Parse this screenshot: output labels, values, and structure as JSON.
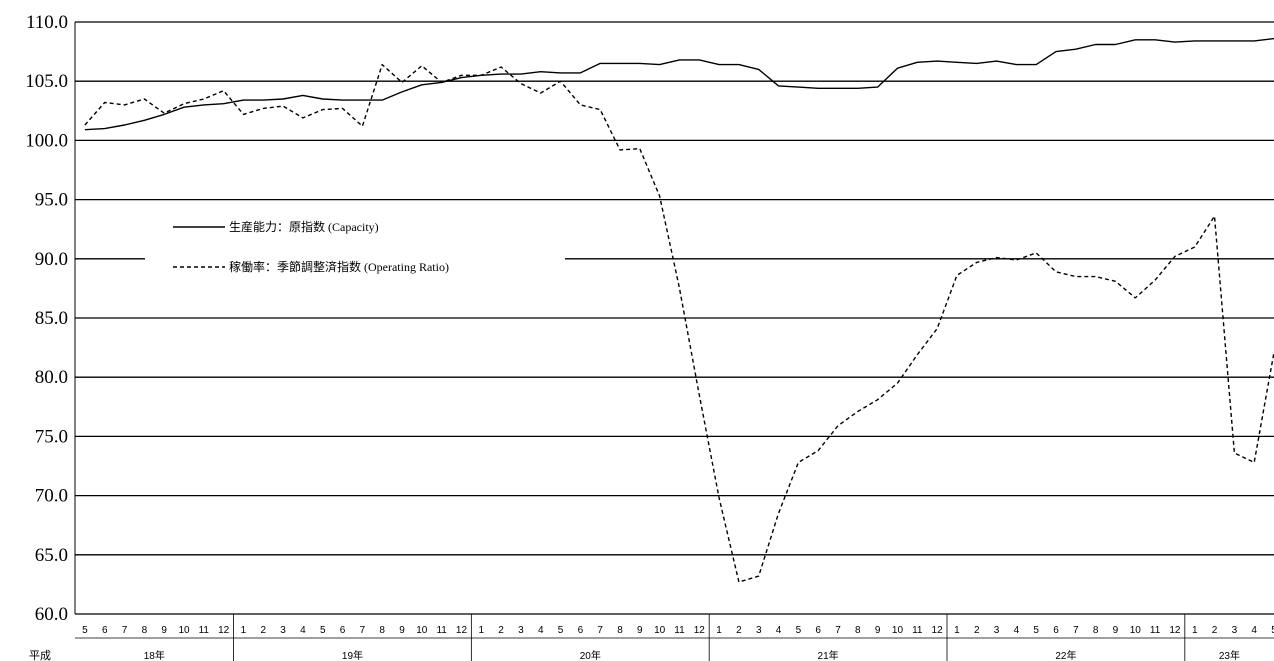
{
  "chart_data": {
    "type": "line",
    "era_label": "平成",
    "ylim": [
      60,
      110
    ],
    "y_ticks": [
      "110.0",
      "105.0",
      "100.0",
      "95.0",
      "90.0",
      "85.0",
      "80.0",
      "75.0",
      "70.0",
      "65.0",
      "60.0"
    ],
    "grid": "horizontal",
    "legend_position": "top-left",
    "x_month_labels": [
      "5",
      "6",
      "7",
      "8",
      "9",
      "10",
      "11",
      "12",
      "1",
      "2",
      "3",
      "4",
      "5",
      "6",
      "7",
      "8",
      "9",
      "10",
      "11",
      "12",
      "1",
      "2",
      "3",
      "4",
      "5",
      "6",
      "7",
      "8",
      "9",
      "10",
      "11",
      "12",
      "1",
      "2",
      "3",
      "4",
      "5",
      "6",
      "7",
      "8",
      "9",
      "10",
      "11",
      "12",
      "1",
      "2",
      "3",
      "4",
      "5",
      "6",
      "7",
      "8",
      "9",
      "10",
      "11",
      "12",
      "1",
      "2",
      "3",
      "4",
      "5"
    ],
    "year_groups": [
      {
        "label": "18年",
        "count": 8
      },
      {
        "label": "19年",
        "count": 12
      },
      {
        "label": "20年",
        "count": 12
      },
      {
        "label": "21年",
        "count": 12
      },
      {
        "label": "22年",
        "count": 12
      },
      {
        "label": "23年",
        "count": 5
      }
    ],
    "series": [
      {
        "name": "生産能力：原指数 (Capacity)",
        "style": "solid",
        "color": "#000000",
        "values": [
          100.9,
          101.0,
          101.3,
          101.7,
          102.2,
          102.8,
          103.0,
          103.1,
          103.4,
          103.4,
          103.5,
          103.8,
          103.5,
          103.4,
          103.4,
          103.4,
          104.1,
          104.7,
          104.9,
          105.3,
          105.5,
          105.6,
          105.6,
          105.8,
          105.7,
          105.7,
          106.5,
          106.5,
          106.5,
          106.4,
          106.8,
          106.8,
          106.4,
          106.4,
          106.0,
          104.6,
          104.5,
          104.4,
          104.4,
          104.4,
          104.5,
          106.1,
          106.6,
          106.7,
          106.6,
          106.5,
          106.7,
          106.4,
          106.4,
          107.5,
          107.7,
          108.1,
          108.1,
          108.5,
          108.5,
          108.3,
          108.4,
          108.4,
          108.4,
          108.4,
          108.6
        ]
      },
      {
        "name": "稼働率：季節調整済指数 (Operating Ratio)",
        "style": "dashed",
        "color": "#000000",
        "values": [
          101.3,
          103.2,
          103.0,
          103.5,
          102.3,
          103.1,
          103.5,
          104.2,
          102.2,
          102.7,
          102.9,
          101.9,
          102.6,
          102.7,
          101.2,
          106.4,
          104.9,
          106.3,
          104.9,
          105.5,
          105.5,
          106.2,
          104.8,
          104.0,
          105.0,
          103.0,
          102.6,
          99.2,
          99.3,
          95.3,
          87.5,
          78.5,
          69.8,
          62.7,
          63.2,
          68.5,
          72.8,
          73.8,
          75.9,
          77.1,
          78.1,
          79.5,
          81.9,
          84.1,
          88.6,
          89.7,
          90.1,
          89.9,
          90.5,
          88.9,
          88.5,
          88.5,
          88.1,
          86.7,
          88.2,
          90.2,
          91.0,
          93.6,
          73.6,
          72.8,
          82.1
        ]
      }
    ]
  }
}
